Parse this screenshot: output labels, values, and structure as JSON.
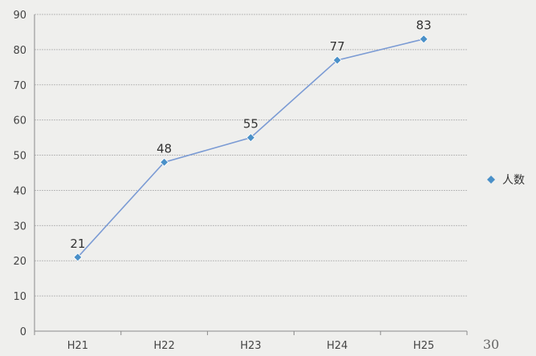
{
  "chart_data": {
    "type": "line",
    "categories": [
      "H21",
      "H22",
      "H23",
      "H24",
      "H25"
    ],
    "series": [
      {
        "name": "人数",
        "values": [
          21,
          48,
          55,
          77,
          83
        ],
        "color": "#7b9bd4",
        "marker_color": "#4a90c8"
      }
    ],
    "y_ticks": [
      0,
      10,
      20,
      30,
      40,
      50,
      60,
      70,
      80,
      90
    ],
    "ylim": [
      0,
      90
    ],
    "grid": true,
    "legend_position": "right",
    "data_labels": true
  },
  "page_number": "30"
}
